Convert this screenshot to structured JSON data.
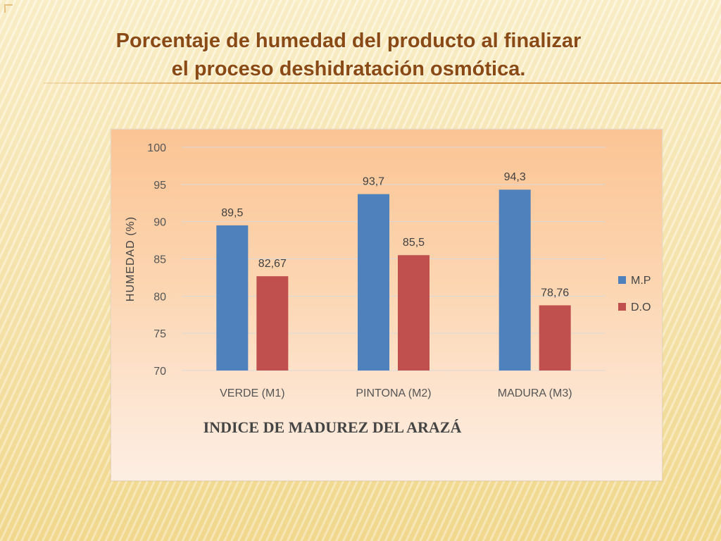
{
  "slide": {
    "title_line1": "Porcentaje de humedad del producto al finalizar",
    "title_line2": "el proceso deshidratación osmótica."
  },
  "colors": {
    "mp": "#4f81bd",
    "do": "#c0504d",
    "title": "#8a4a16"
  },
  "chart_data": {
    "type": "bar",
    "title": "",
    "categories": [
      "VERDE (M1)",
      "PINTONA (M2)",
      "MADURA (M3)"
    ],
    "series": [
      {
        "name": "M.P",
        "values": [
          89.5,
          93.7,
          94.3
        ],
        "labels": [
          "89,5",
          "93,7",
          "94,3"
        ]
      },
      {
        "name": "D.O",
        "values": [
          82.67,
          85.5,
          78.76
        ],
        "labels": [
          "82,67",
          "85,5",
          "78,76"
        ]
      }
    ],
    "ylabel": "HUMEDAD (%)",
    "xlabel": "INDICE  DE MADUREZ DEL ARAZÁ",
    "ylim": [
      70,
      100
    ],
    "yticks": [
      70,
      75,
      80,
      85,
      90,
      95,
      100
    ],
    "grid": true,
    "legend": "right"
  }
}
